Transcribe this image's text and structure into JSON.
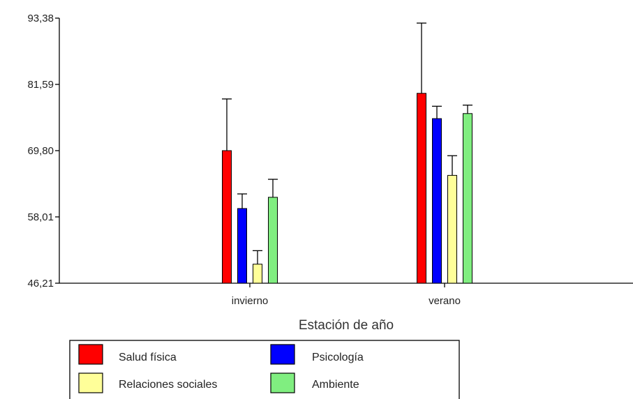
{
  "chart_data": {
    "type": "bar",
    "title": "",
    "xlabel": "Estación de año",
    "ylabel": "",
    "categories": [
      "invierno",
      "verano"
    ],
    "ylim": [
      46.21,
      93.38
    ],
    "yticks": [
      "93,38",
      "81,59",
      "69,80",
      "58,01",
      "46,21"
    ],
    "ytick_values": [
      93.38,
      81.59,
      69.8,
      58.01,
      46.21
    ],
    "error_bars": true,
    "grid": false,
    "legend_position": "bottom-left",
    "series": [
      {
        "name": "Salud física",
        "color": "#ff0000",
        "values": [
          69.8,
          80.0
        ],
        "errors": [
          9.2,
          12.5
        ]
      },
      {
        "name": "Psicología",
        "color": "#0000ff",
        "values": [
          59.5,
          75.5
        ],
        "errors": [
          2.6,
          2.2
        ]
      },
      {
        "name": "Relaciones sociales",
        "color": "#ffff99",
        "values": [
          49.6,
          65.4
        ],
        "errors": [
          2.4,
          3.5
        ]
      },
      {
        "name": "Ambiente",
        "color": "#80ee80",
        "values": [
          61.5,
          76.4
        ],
        "errors": [
          3.2,
          1.5
        ]
      }
    ]
  }
}
